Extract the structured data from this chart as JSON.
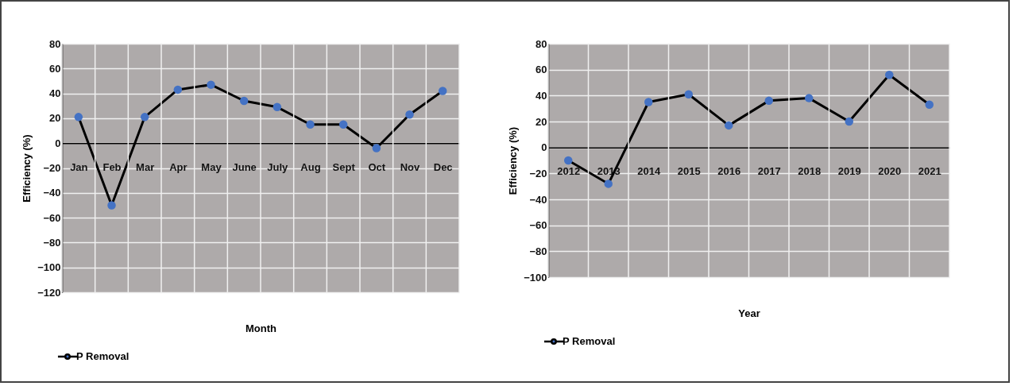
{
  "chart_data": [
    {
      "type": "line",
      "xlabel": "Month",
      "ylabel": "Efficiency (%)",
      "categories": [
        "Jan",
        "Feb",
        "Mar",
        "Apr",
        "May",
        "June",
        "July",
        "Aug",
        "Sept",
        "Oct",
        "Nov",
        "Dec"
      ],
      "series": [
        {
          "name": "P Removal",
          "color": "#4472c4",
          "values": [
            21,
            -50,
            21,
            43,
            47,
            34,
            29,
            15,
            15,
            -4,
            23,
            42
          ]
        }
      ],
      "ylim": [
        -120,
        80
      ],
      "yticks": [
        -120,
        -100,
        -80,
        -60,
        -40,
        -20,
        0,
        20,
        40,
        60,
        80
      ],
      "grid": true,
      "legend": "bottom",
      "marker": "circle",
      "line_style": "solid"
    },
    {
      "type": "line",
      "xlabel": "Year",
      "ylabel": "Efficiency (%)",
      "categories": [
        "2012",
        "2013",
        "2014",
        "2015",
        "2016",
        "2017",
        "2018",
        "2019",
        "2020",
        "2021"
      ],
      "series": [
        {
          "name": "P Removal",
          "color": "#4472c4",
          "values": [
            -10,
            -28,
            35,
            41,
            17,
            36,
            38,
            20,
            56,
            33
          ]
        }
      ],
      "ylim": [
        -100,
        80
      ],
      "yticks": [
        -100,
        -80,
        -60,
        -40,
        -20,
        0,
        20,
        40,
        60,
        80
      ],
      "grid": true,
      "legend": "bottom",
      "marker": "circle",
      "line_style": "solid"
    }
  ]
}
